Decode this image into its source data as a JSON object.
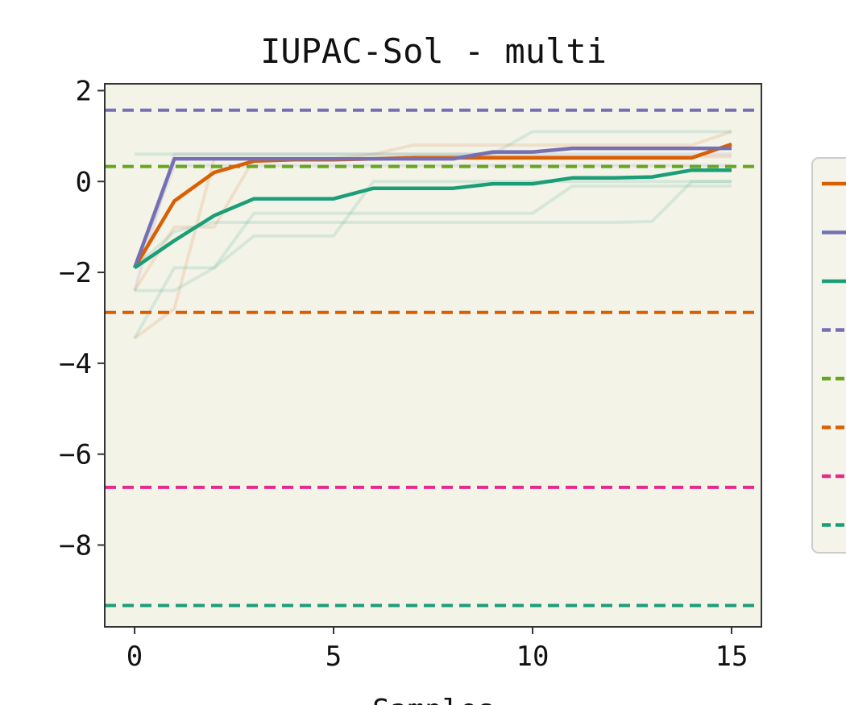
{
  "chart_data": {
    "type": "line",
    "title": "IUPAC-Sol - multi",
    "xlabel": "Samples",
    "ylabel": "",
    "xlim": [
      -0.75,
      15.75
    ],
    "ylim": [
      -9.8,
      2.15
    ],
    "xticks": [
      0,
      5,
      10,
      15
    ],
    "yticks": [
      2,
      0,
      -2,
      -4,
      -6,
      -8
    ],
    "tick_labels": {
      "x": [
        "0",
        "5",
        "10",
        "15"
      ],
      "y": [
        "2",
        "0",
        "−2",
        "−4",
        "−6",
        "−8"
      ]
    },
    "grid": false,
    "legend_position": "right, outside plot (clipped)",
    "background": "#f3f3e8",
    "colors": {
      "orange": "#d95f02",
      "purple": "#7570b3",
      "green": "#1b9e77",
      "lime": "#66a61e",
      "pink": "#e7298a"
    },
    "x": [
      0,
      1,
      2,
      3,
      4,
      5,
      6,
      7,
      8,
      9,
      10,
      11,
      12,
      13,
      14,
      15
    ],
    "series": [
      {
        "color": "#d95f02",
        "style": "solid",
        "values": [
          -1.9,
          -0.43,
          0.2,
          0.45,
          0.48,
          0.48,
          0.5,
          0.52,
          0.52,
          0.52,
          0.52,
          0.52,
          0.52,
          0.52,
          0.52,
          0.82
        ]
      },
      {
        "color": "#7570b3",
        "style": "solid",
        "values": [
          -1.9,
          0.5,
          0.5,
          0.5,
          0.5,
          0.5,
          0.5,
          0.5,
          0.5,
          0.65,
          0.65,
          0.73,
          0.73,
          0.73,
          0.73,
          0.73
        ]
      },
      {
        "color": "#1b9e77",
        "style": "solid",
        "values": [
          -1.9,
          -1.3,
          -0.75,
          -0.38,
          -0.38,
          -0.38,
          -0.15,
          -0.15,
          -0.15,
          -0.05,
          -0.05,
          0.08,
          0.08,
          0.1,
          0.25,
          0.25
        ]
      }
    ],
    "faint_series": [
      {
        "color": "#d95f02",
        "values": [
          -3.45,
          -2.8,
          0.5,
          0.5,
          0.5,
          0.5,
          0.6,
          0.8,
          0.8,
          0.8,
          0.8,
          0.8,
          0.8,
          0.8,
          0.8,
          1.1
        ]
      },
      {
        "color": "#d95f02",
        "values": [
          -2.4,
          -1.0,
          -1.0,
          0.5,
          0.5,
          0.5,
          0.5,
          0.55,
          0.55,
          0.55,
          0.55,
          0.55,
          0.55,
          0.55,
          0.55,
          0.55
        ]
      },
      {
        "color": "#7570b3",
        "values": [
          -2.4,
          0.6,
          0.6,
          0.6,
          0.6,
          0.6,
          0.6,
          0.6,
          0.6,
          0.6,
          0.6,
          0.6,
          0.6,
          0.6,
          0.6,
          0.6
        ]
      },
      {
        "color": "#7570b3",
        "values": [
          -1.9,
          0.35,
          0.35,
          0.35,
          0.35,
          0.35,
          0.35,
          0.35,
          0.35,
          0.35,
          0.35,
          0.35,
          0.35,
          0.35,
          0.35,
          0.35
        ]
      },
      {
        "color": "#1b9e77",
        "values": [
          -2.4,
          -2.4,
          -1.9,
          -0.7,
          -0.7,
          -0.7,
          -0.7,
          -0.7,
          -0.7,
          -0.7,
          -0.7,
          -0.1,
          -0.1,
          -0.1,
          -0.1,
          -0.1
        ]
      },
      {
        "color": "#1b9e77",
        "values": [
          -3.45,
          -1.9,
          -1.9,
          -1.2,
          -1.2,
          -1.2,
          0.0,
          0.0,
          0.0,
          0.0,
          0.0,
          0.0,
          0.0,
          0.0,
          0.0,
          0.0
        ]
      },
      {
        "color": "#1b9e77",
        "values": [
          -1.9,
          -1.1,
          -0.9,
          -0.9,
          -0.9,
          -0.9,
          -0.9,
          -0.9,
          -0.9,
          -0.9,
          -0.9,
          -0.9,
          -0.9,
          -0.88,
          0.0,
          0.0
        ]
      },
      {
        "color": "#1b9e77",
        "values": [
          0.6,
          0.6,
          0.6,
          0.6,
          0.6,
          0.6,
          0.6,
          0.6,
          0.6,
          0.6,
          1.1,
          1.1,
          1.1,
          1.1,
          1.1,
          1.1
        ]
      }
    ],
    "reference_lines": [
      {
        "color": "#7570b3",
        "value": 1.57
      },
      {
        "color": "#66a61e",
        "value": 0.33
      },
      {
        "color": "#d95f02",
        "value": -2.88
      },
      {
        "color": "#e7298a",
        "value": -6.73
      },
      {
        "color": "#1b9e77",
        "value": -9.33
      }
    ],
    "legend_entries": [
      {
        "color": "#d95f02",
        "style": "solid"
      },
      {
        "color": "#7570b3",
        "style": "solid"
      },
      {
        "color": "#1b9e77",
        "style": "solid"
      },
      {
        "color": "#7570b3",
        "style": "dashed"
      },
      {
        "color": "#66a61e",
        "style": "dashed"
      },
      {
        "color": "#d95f02",
        "style": "dashed"
      },
      {
        "color": "#e7298a",
        "style": "dashed"
      },
      {
        "color": "#1b9e77",
        "style": "dashed"
      }
    ]
  }
}
